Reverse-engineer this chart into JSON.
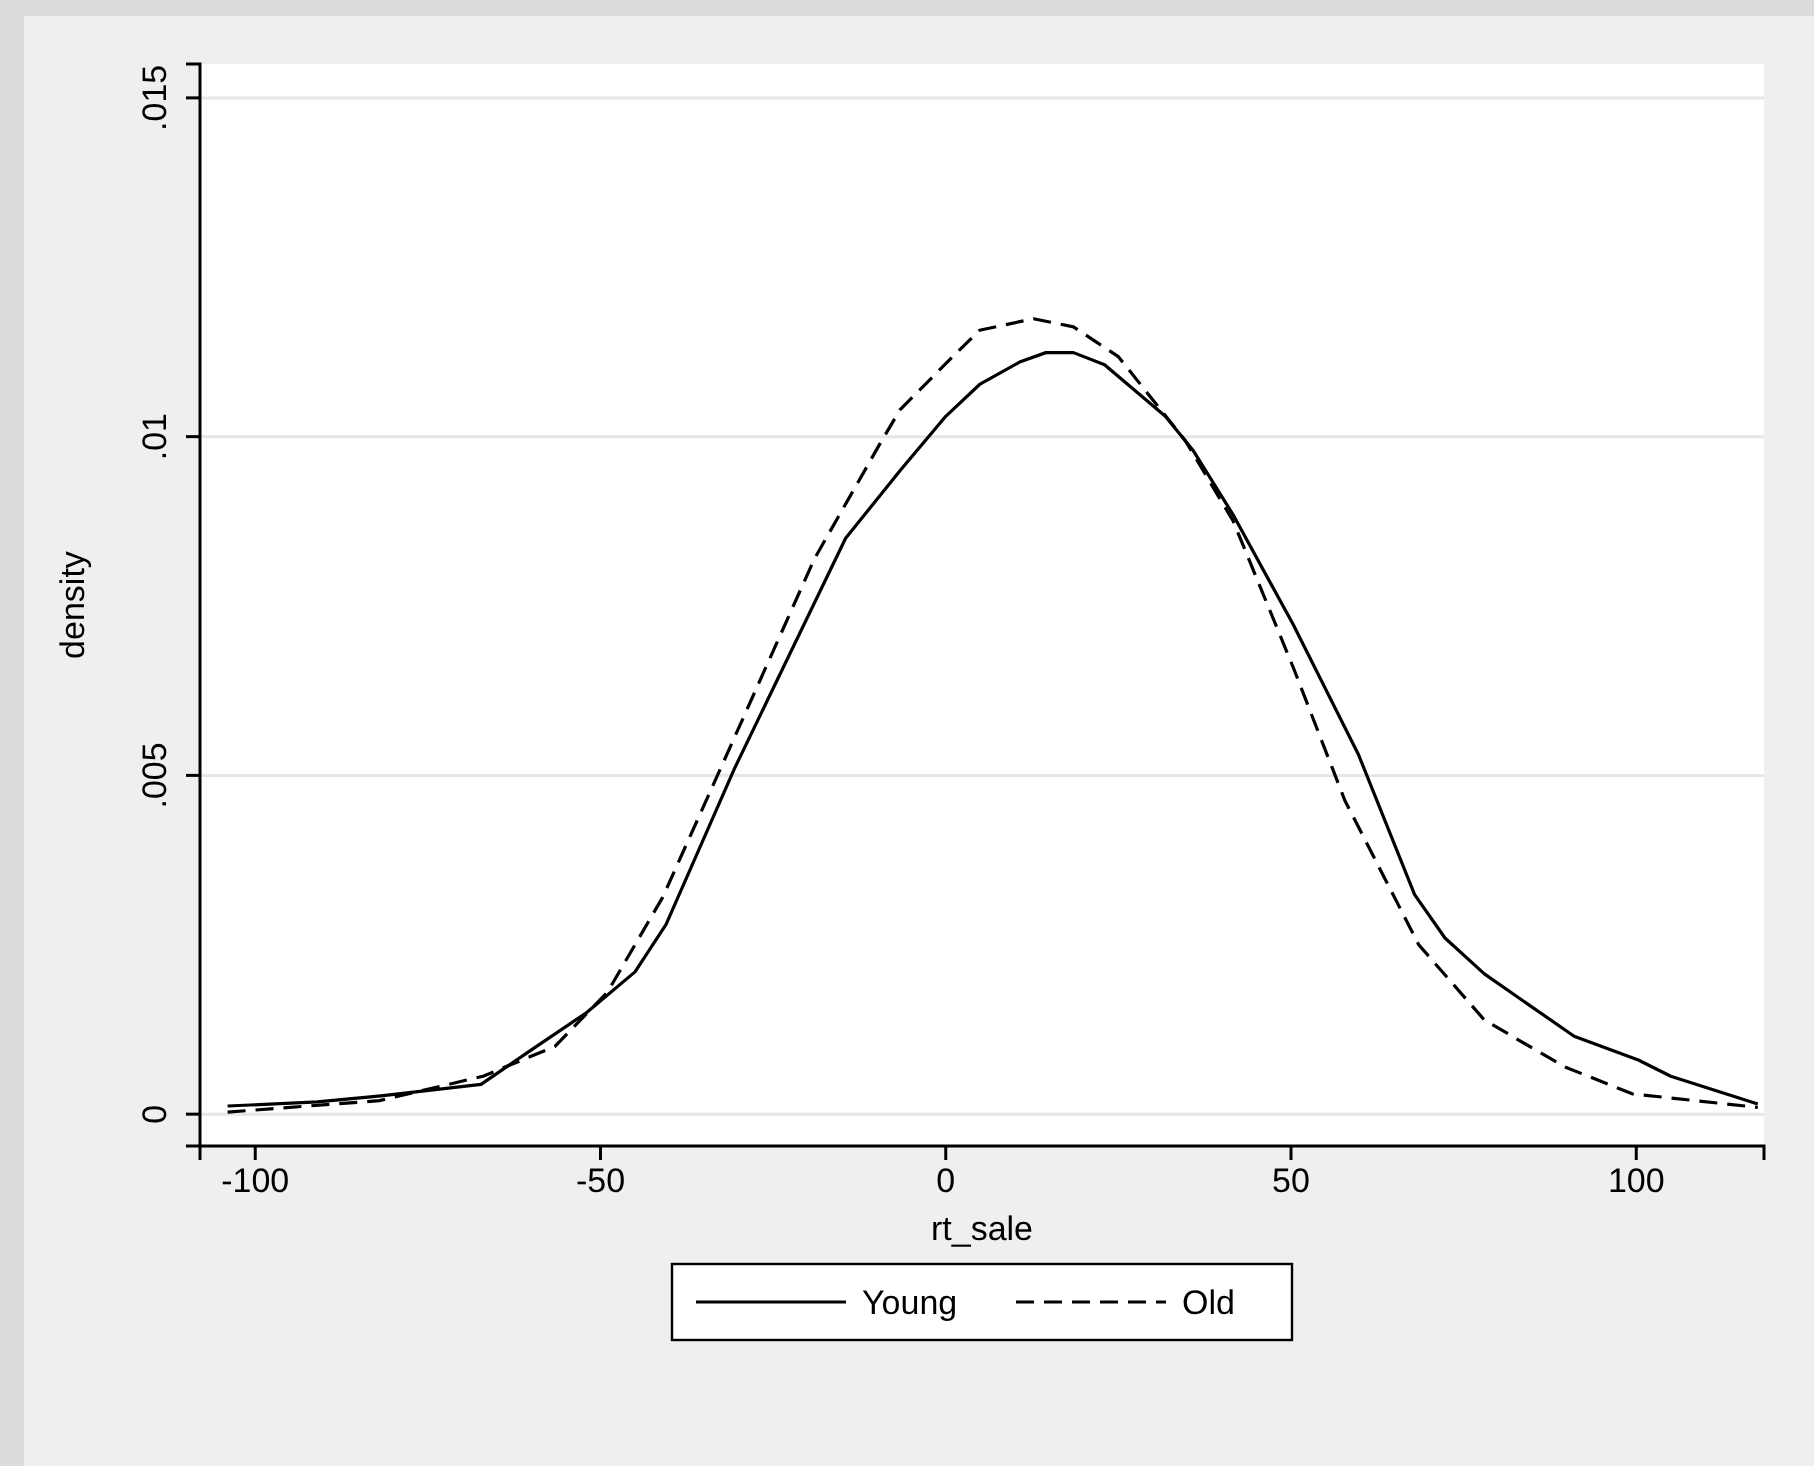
{
  "chart_data": {
    "type": "line",
    "xlabel": "rt_sale",
    "ylabel": "density",
    "xlim": [
      -108,
      118.5
    ],
    "ylim": [
      -0.00047,
      0.0155
    ],
    "xticks": [
      -100,
      -50,
      0,
      50,
      100
    ],
    "yticks": [
      {
        "value": 0,
        "label": "0"
      },
      {
        "value": 0.005,
        "label": ".005"
      },
      {
        "value": 0.01,
        "label": ".01"
      },
      {
        "value": 0.015,
        "label": ".015"
      }
    ],
    "grid": "y",
    "legend": "bottom",
    "marker": "none",
    "series": [
      {
        "name": "Young",
        "color": "#000000",
        "line_style": "solid",
        "x": [
          -104,
          -91,
          -81.8,
          -67.3,
          -60.7,
          -52,
          -45,
          -40.5,
          -30.6,
          -14.5,
          -6.6,
          0,
          4.9,
          10.7,
          14.5,
          18.5,
          23,
          31.8,
          35.8,
          41.6,
          50.3,
          59.8,
          67.9,
          72.3,
          78,
          91,
          100.3,
          105,
          117.6
        ],
        "values": [
          0.00012,
          0.00018,
          0.00027,
          0.00044,
          0.0009,
          0.0015,
          0.0021,
          0.0028,
          0.0051,
          0.0085,
          0.0095,
          0.0103,
          0.01077,
          0.0111,
          0.01124,
          0.01124,
          0.01106,
          0.0103,
          0.0098,
          0.00885,
          0.00723,
          0.0053,
          0.00324,
          0.0026,
          0.00207,
          0.00115,
          0.0008,
          0.00056,
          0.00015
        ]
      },
      {
        "name": "Old",
        "color": "#000000",
        "line_style": "dashed",
        "x": [
          -104,
          -82,
          -67,
          -56.6,
          -49,
          -41,
          -33.5,
          -19,
          -9.5,
          -6.6,
          1.2,
          4.9,
          12.7,
          18.5,
          25,
          34.7,
          41.6,
          50.3,
          57.8,
          68.5,
          78,
          89.6,
          99.4,
          117.6
        ],
        "values": [
          3e-05,
          0.0002,
          0.00056,
          0.001,
          0.0018,
          0.0032,
          0.0049,
          0.0082,
          0.0099,
          0.0104,
          0.0112,
          0.01157,
          0.01174,
          0.01162,
          0.01118,
          0.00994,
          0.00876,
          0.0066,
          0.00463,
          0.0025,
          0.00139,
          0.0007,
          0.0003,
          0.0001
        ]
      }
    ]
  }
}
